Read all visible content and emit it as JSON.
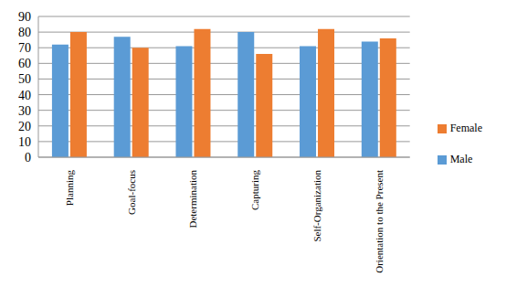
{
  "chart_data": {
    "type": "bar",
    "categories": [
      "Planning",
      "Goal-focus",
      "Determination",
      "Capturing",
      "Self-Organization",
      "Orientation to the Present"
    ],
    "series": [
      {
        "name": "Male",
        "color": "#5b9bd5",
        "values": [
          72,
          77,
          71,
          80,
          71,
          74
        ]
      },
      {
        "name": "Female",
        "color": "#ed7d31",
        "values": [
          80,
          70,
          82,
          66,
          82,
          76
        ]
      }
    ],
    "ylim": [
      0,
      90
    ],
    "yticks": [
      0,
      10,
      20,
      30,
      40,
      50,
      60,
      70,
      80,
      90
    ],
    "grid": true,
    "legend": "right"
  }
}
